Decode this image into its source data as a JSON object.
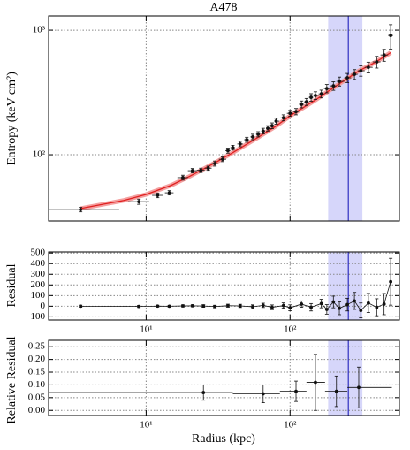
{
  "chart_data": [
    {
      "type": "scatter",
      "title": "A478",
      "y_label": "Entropy (keV cm²)",
      "xscale": "log",
      "yscale": "log",
      "grid": true,
      "xlim": [
        2.1,
        575
      ],
      "ylim": [
        29.4,
        1300
      ],
      "xticks": [
        10,
        100
      ],
      "yticks": [
        {
          "value": 100,
          "label": "10²"
        },
        {
          "value": 1000,
          "label": "10³"
        }
      ],
      "shaded_region": [
        184,
        318
      ],
      "vline": 254,
      "band_color": "#c8c8f8",
      "vline_color": "#3030c0",
      "color": "#111111",
      "x": [
        3.5,
        8.9,
        12,
        14.5,
        18,
        21,
        24,
        27,
        30,
        34,
        37,
        40,
        45,
        50,
        55,
        60,
        65,
        70,
        75,
        80,
        90,
        100,
        110,
        120,
        130,
        140,
        150,
        165,
        180,
        200,
        220,
        250,
        280,
        310,
        350,
        400,
        450,
        500
      ],
      "values": [
        36.3,
        42,
        47.2,
        49.5,
        65.5,
        74.5,
        75,
        78,
        85,
        92,
        108,
        114,
        122,
        132,
        139,
        146,
        155,
        163,
        171,
        186,
        198,
        215,
        222,
        254,
        266,
        289,
        299,
        308,
        340,
        357,
        388,
        414,
        442,
        472,
        503,
        556,
        632,
        906
      ],
      "errors": [
        1.5,
        2,
        2,
        2,
        3,
        3,
        3,
        3,
        4,
        4,
        5,
        5,
        6,
        6,
        7,
        7,
        8,
        8,
        9,
        10,
        11,
        12,
        13,
        16,
        17,
        20,
        21,
        22,
        26,
        28,
        32,
        35,
        40,
        45,
        50,
        60,
        70,
        200
      ],
      "x_lo": [
        2.1,
        7.5,
        11,
        13.5,
        16.5,
        19.5,
        22.5,
        25.5,
        28.5,
        32,
        35.5,
        38.5,
        43,
        48,
        53,
        58,
        63,
        68,
        73,
        78,
        86,
        95,
        105,
        115,
        125,
        135,
        145,
        158,
        172,
        190,
        210,
        238,
        266,
        295,
        330,
        375,
        425,
        480
      ],
      "x_hi": [
        6.5,
        10.5,
        13,
        15.5,
        19.5,
        22.5,
        25.5,
        28.5,
        31.5,
        36,
        38.5,
        41.5,
        47,
        52,
        57,
        62,
        67,
        72,
        77,
        84,
        95,
        105,
        115,
        125,
        135,
        145,
        158,
        172,
        190,
        210,
        238,
        266,
        295,
        330,
        375,
        425,
        480,
        520
      ],
      "model": {
        "color": "#e02020",
        "band_color": "#f4a0a0",
        "x": [
          3.5,
          5,
          7,
          10,
          15,
          20,
          30,
          40,
          60,
          80,
          100,
          150,
          200,
          300,
          400,
          500
        ],
        "values": [
          37,
          40,
          43,
          48,
          57,
          67,
          86,
          104,
          138,
          170,
          205,
          275,
          345,
          470,
          560,
          660
        ]
      }
    },
    {
      "type": "scatter",
      "y_label": "Residual",
      "xscale": "log",
      "yscale": "linear",
      "grid": true,
      "xlim": [
        2.1,
        575
      ],
      "ylim": [
        -130,
        510
      ],
      "xticks": [
        {
          "value": 10,
          "label": "10¹"
        },
        {
          "value": 100,
          "label": "10²"
        }
      ],
      "yticks": [
        -100,
        0,
        100,
        200,
        300,
        400,
        500
      ],
      "shaded_region": [
        184,
        318
      ],
      "vline": 254,
      "band_color": "#c8c8f8",
      "vline_color": "#3030c0",
      "color": "#111111",
      "connect": true,
      "x": [
        3.5,
        8.9,
        12,
        14.5,
        18,
        21,
        25,
        30,
        37,
        45,
        55,
        65,
        75,
        90,
        100,
        120,
        140,
        165,
        180,
        200,
        220,
        250,
        280,
        310,
        350,
        400,
        450,
        500
      ],
      "values": [
        0,
        -2,
        1,
        0,
        3,
        4,
        2,
        -3,
        5,
        3,
        -5,
        8,
        -10,
        6,
        -15,
        20,
        -10,
        25,
        -30,
        40,
        -20,
        15,
        50,
        -40,
        30,
        -10,
        20,
        230
      ],
      "errors": [
        10,
        10,
        8,
        8,
        10,
        10,
        12,
        12,
        14,
        15,
        18,
        20,
        22,
        25,
        28,
        30,
        35,
        40,
        45,
        55,
        60,
        60,
        80,
        70,
        90,
        80,
        100,
        220
      ]
    },
    {
      "type": "scatter",
      "y_label": "Relative Residual",
      "x_label": "Radius (kpc)",
      "xscale": "log",
      "yscale": "linear",
      "grid": true,
      "xlim": [
        2.1,
        575
      ],
      "ylim": [
        -0.02,
        0.275
      ],
      "xticks": [
        {
          "value": 10,
          "label": "10¹"
        },
        {
          "value": 100,
          "label": "10²"
        }
      ],
      "yticks": [
        {
          "value": 0,
          "label": "0.00"
        },
        0.05,
        {
          "value": 0.1,
          "label": "0.10"
        },
        0.15,
        {
          "value": 0.2,
          "label": "0.20"
        },
        0.25
      ],
      "shaded_region": [
        184,
        318
      ],
      "vline": 254,
      "band_color": "#c8c8f8",
      "vline_color": "#3030c0",
      "color": "#111111",
      "x": [
        25,
        65,
        110,
        150,
        210,
        300
      ],
      "values": [
        0.07,
        0.065,
        0.075,
        0.11,
        0.075,
        0.09
      ],
      "errors": [
        0.03,
        0.035,
        0.04,
        0.11,
        0.06,
        0.08
      ],
      "x_lo": [
        2.1,
        40,
        85,
        130,
        175,
        250
      ],
      "x_hi": [
        40,
        85,
        130,
        175,
        250,
        510
      ]
    }
  ]
}
